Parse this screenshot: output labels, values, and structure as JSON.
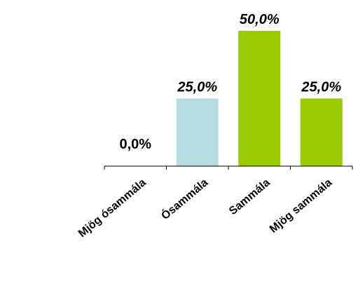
{
  "chart_data": {
    "type": "bar",
    "categories": [
      "Mjög ósammála",
      "Ósammála",
      "Sammála",
      "Mjög sammála"
    ],
    "values": [
      0,
      25,
      50,
      25
    ],
    "value_labels": [
      "0,0%",
      "25,0%",
      "50,0%",
      "25,0%"
    ],
    "value_label_italic": [
      false,
      true,
      true,
      true
    ],
    "bar_colors": [
      "#b7dde0",
      "#b7dde0",
      "#99cc00",
      "#99cc00"
    ],
    "ylim": [
      0,
      50
    ],
    "title": "",
    "xlabel": "",
    "ylabel": "",
    "grid": false,
    "legend": "none"
  }
}
